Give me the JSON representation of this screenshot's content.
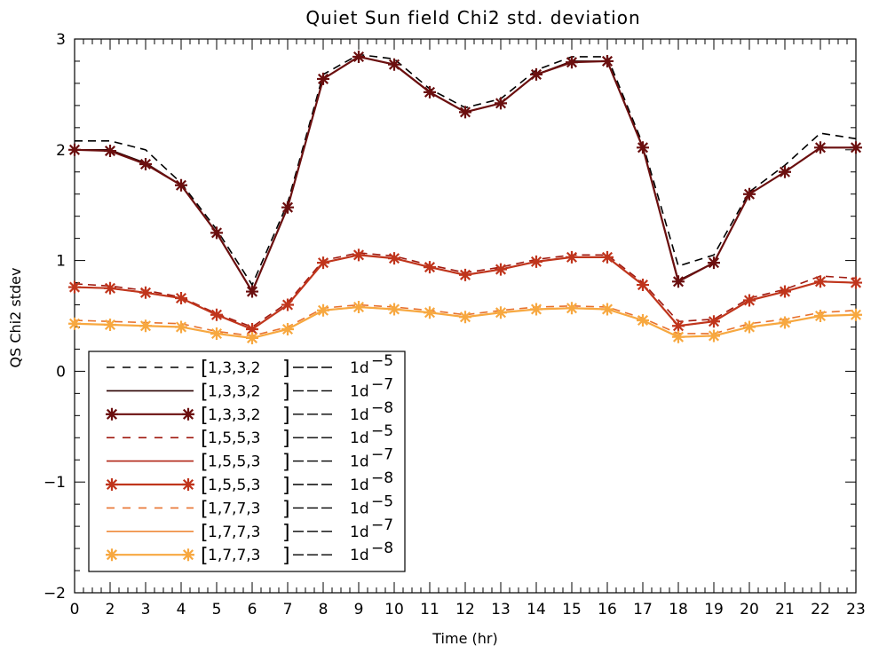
{
  "chart_data": {
    "type": "line",
    "title": "Quiet Sun field Chi2 std. deviation",
    "xlabel": "Time (hr)",
    "ylabel": "QS Chi2 stdev",
    "x_ticks": [
      "0",
      "2",
      "3",
      "4",
      "5",
      "6",
      "7",
      "8",
      "9",
      "10",
      "11",
      "12",
      "13",
      "14",
      "15",
      "16",
      "17",
      "18",
      "19",
      "20",
      "21",
      "22",
      "23"
    ],
    "y_ticks": [
      -2,
      -1,
      0,
      1,
      2,
      3
    ],
    "ylim": [
      -2,
      3
    ],
    "legend_placement": "lower-left",
    "series": [
      {
        "name": "[1,3,3,2] --- 1d-5",
        "label_params": "1,3,3,2",
        "label_tol": "1d",
        "label_exp": "-5",
        "color": "#000000",
        "style": "dashed",
        "marker": "none",
        "values": [
          2.08,
          2.08,
          2.0,
          1.7,
          1.28,
          0.78,
          1.52,
          2.68,
          2.86,
          2.82,
          2.55,
          2.38,
          2.46,
          2.72,
          2.84,
          2.84,
          2.05,
          0.95,
          1.05,
          1.62,
          1.86,
          2.15,
          2.1
        ]
      },
      {
        "name": "[1,3,3,2] --- 1d-7",
        "label_params": "1,3,3,2",
        "label_tol": "1d",
        "label_exp": "-7",
        "color": "#2a0000",
        "style": "solid",
        "marker": "none",
        "values": [
          2.0,
          2.0,
          1.88,
          1.68,
          1.25,
          0.72,
          1.48,
          2.64,
          2.84,
          2.77,
          2.52,
          2.34,
          2.42,
          2.68,
          2.8,
          2.8,
          2.02,
          0.82,
          0.98,
          1.6,
          1.8,
          2.02,
          2.02
        ]
      },
      {
        "name": "[1,3,3,2] --- 1d-8",
        "label_params": "1,3,3,2",
        "label_tol": "1d",
        "label_exp": "-8",
        "color": "#6b0f0f",
        "style": "solid",
        "marker": "star",
        "values": [
          2.0,
          1.99,
          1.87,
          1.68,
          1.25,
          0.72,
          1.48,
          2.64,
          2.84,
          2.77,
          2.52,
          2.34,
          2.42,
          2.68,
          2.79,
          2.8,
          2.02,
          0.81,
          0.98,
          1.6,
          1.8,
          2.02,
          2.02
        ]
      },
      {
        "name": "[1,5,5,3] --- 1d-5",
        "label_params": "1,5,5,3",
        "label_tol": "1d",
        "label_exp": "-5",
        "color": "#a01a10",
        "style": "dashed",
        "marker": "none",
        "values": [
          0.79,
          0.77,
          0.73,
          0.67,
          0.52,
          0.4,
          0.62,
          1.0,
          1.07,
          1.04,
          0.96,
          0.89,
          0.94,
          1.01,
          1.05,
          1.05,
          0.8,
          0.45,
          0.47,
          0.66,
          0.74,
          0.86,
          0.84
        ]
      },
      {
        "name": "[1,5,5,3] --- 1d-7",
        "label_params": "1,5,5,3",
        "label_tol": "1d",
        "label_exp": "-7",
        "color": "#b02414",
        "style": "solid",
        "marker": "none",
        "values": [
          0.76,
          0.75,
          0.71,
          0.66,
          0.51,
          0.38,
          0.6,
          0.98,
          1.05,
          1.02,
          0.94,
          0.87,
          0.92,
          0.99,
          1.03,
          1.03,
          0.78,
          0.41,
          0.45,
          0.64,
          0.72,
          0.81,
          0.8
        ]
      },
      {
        "name": "[1,5,5,3] --- 1d-8",
        "label_params": "1,5,5,3",
        "label_tol": "1d",
        "label_exp": "-8",
        "color": "#c0351c",
        "style": "solid",
        "marker": "star",
        "values": [
          0.76,
          0.75,
          0.71,
          0.66,
          0.51,
          0.38,
          0.6,
          0.98,
          1.05,
          1.02,
          0.94,
          0.87,
          0.92,
          0.99,
          1.03,
          1.03,
          0.78,
          0.41,
          0.45,
          0.64,
          0.72,
          0.81,
          0.8
        ]
      },
      {
        "name": "[1,7,7,3] --- 1d-5",
        "label_params": "1,7,7,3",
        "label_tol": "1d",
        "label_exp": "-5",
        "color": "#e8722e",
        "style": "dashed",
        "marker": "none",
        "values": [
          0.46,
          0.45,
          0.44,
          0.43,
          0.36,
          0.32,
          0.4,
          0.57,
          0.6,
          0.58,
          0.55,
          0.51,
          0.55,
          0.58,
          0.59,
          0.58,
          0.48,
          0.34,
          0.34,
          0.43,
          0.47,
          0.53,
          0.55
        ]
      },
      {
        "name": "[1,7,7,3] --- 1d-7",
        "label_params": "1,7,7,3",
        "label_tol": "1d",
        "label_exp": "-7",
        "color": "#ef8a3a",
        "style": "solid",
        "marker": "none",
        "values": [
          0.43,
          0.42,
          0.41,
          0.4,
          0.34,
          0.3,
          0.38,
          0.55,
          0.58,
          0.56,
          0.53,
          0.49,
          0.53,
          0.56,
          0.57,
          0.56,
          0.46,
          0.31,
          0.32,
          0.4,
          0.44,
          0.5,
          0.51
        ]
      },
      {
        "name": "[1,7,7,3] --- 1d-8",
        "label_params": "1,7,7,3",
        "label_tol": "1d",
        "label_exp": "-8",
        "color": "#f7a840",
        "style": "solid",
        "marker": "star",
        "values": [
          0.43,
          0.42,
          0.41,
          0.4,
          0.34,
          0.3,
          0.38,
          0.55,
          0.58,
          0.56,
          0.53,
          0.49,
          0.53,
          0.56,
          0.57,
          0.56,
          0.46,
          0.31,
          0.32,
          0.4,
          0.44,
          0.5,
          0.51
        ]
      }
    ]
  }
}
